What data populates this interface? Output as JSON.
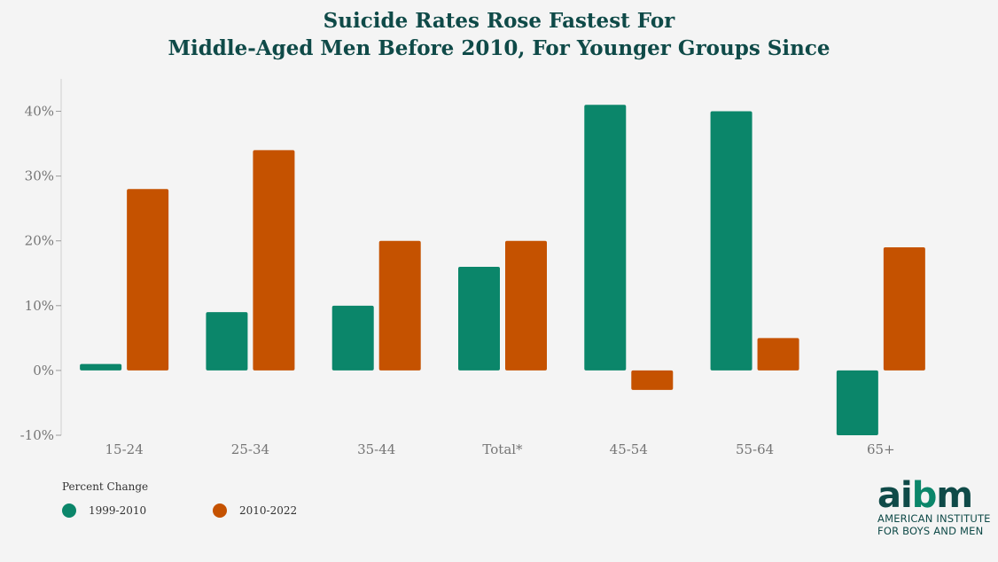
{
  "title_lines": [
    "Suicide Rates Rose Fastest For",
    "Middle-Aged Men Before 2010, For Younger Groups Since"
  ],
  "chart_data": {
    "type": "bar",
    "title": "Suicide Rates Rose Fastest For Middle-Aged Men Before 2010, For Younger Groups Since",
    "categories": [
      "15-24",
      "25-34",
      "35-44",
      "Total*",
      "45-54",
      "55-64",
      "65+"
    ],
    "series": [
      {
        "name": "1999-2010",
        "color": "#0b866a",
        "values": [
          1,
          9,
          10,
          16,
          41,
          40,
          -10
        ]
      },
      {
        "name": "2010-2022",
        "color": "#c55200",
        "values": [
          28,
          34,
          20,
          20,
          -3,
          5,
          19
        ]
      }
    ],
    "ylim": [
      -10,
      45
    ],
    "yticks": [
      -10,
      0,
      10,
      20,
      30,
      40
    ],
    "ytick_labels": [
      "-10%",
      "0%",
      "10%",
      "20%",
      "30%",
      "40%"
    ],
    "grid": false,
    "legend_position": "bottom-left"
  },
  "legend": {
    "title": "Percent Change",
    "items": [
      {
        "label": "1999-2010",
        "color": "#0b866a"
      },
      {
        "label": "2010-2022",
        "color": "#c55200"
      }
    ]
  },
  "logo": {
    "mark": "aibm",
    "line1": "AMERICAN INSTITUTE",
    "line2": "FOR BOYS AND MEN",
    "color_dark": "#0f4a48",
    "color_accent": "#0b866a"
  }
}
